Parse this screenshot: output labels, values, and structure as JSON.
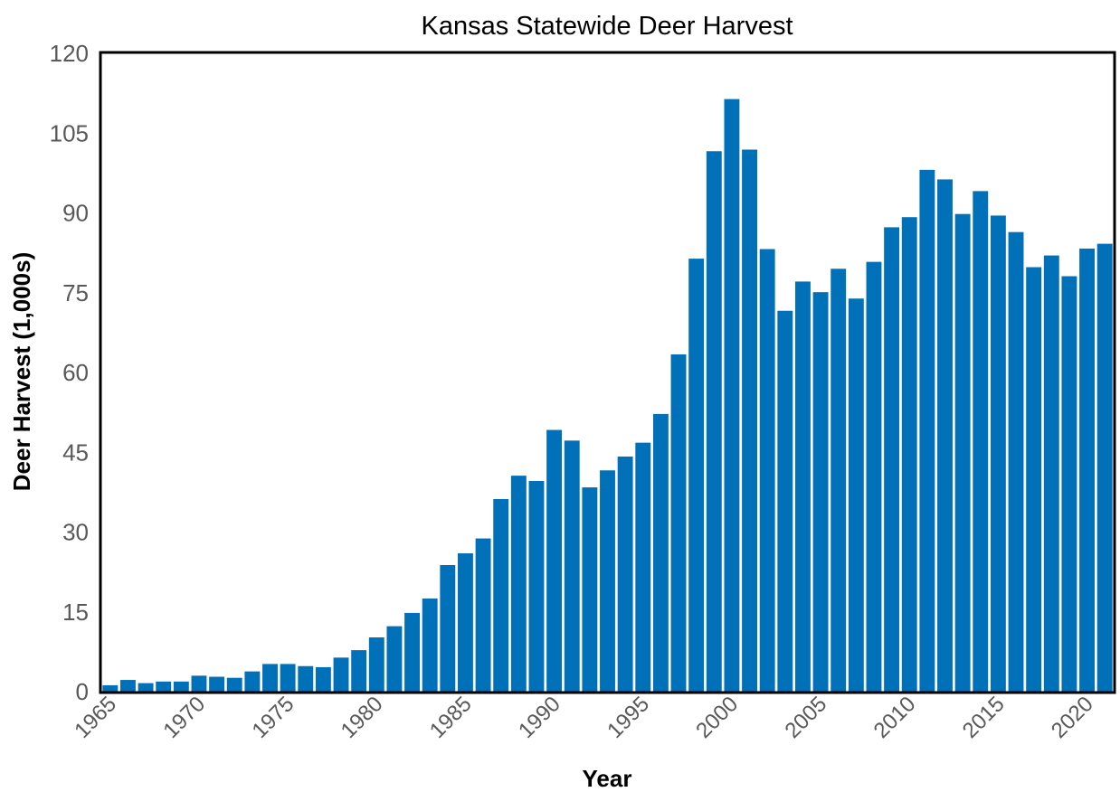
{
  "chart_data": {
    "type": "bar",
    "title": "Kansas Statewide Deer Harvest",
    "xlabel": "Year",
    "ylabel": "Deer Harvest (1,000s)",
    "ylim": [
      0,
      120
    ],
    "yticks": [
      "0",
      "15",
      "30",
      "45",
      "60",
      "75",
      "90",
      "105",
      "120"
    ],
    "xticks": [
      "1965",
      "1970",
      "1975",
      "1980",
      "1985",
      "1990",
      "1995",
      "2000",
      "2005",
      "2010",
      "2015",
      "2020"
    ],
    "grid": false,
    "legend": false,
    "bar_color": "#0070b8",
    "categories": [
      1965,
      1966,
      1967,
      1968,
      1969,
      1970,
      1971,
      1972,
      1973,
      1974,
      1975,
      1976,
      1977,
      1978,
      1979,
      1980,
      1981,
      1982,
      1983,
      1984,
      1985,
      1986,
      1987,
      1988,
      1989,
      1990,
      1991,
      1992,
      1993,
      1994,
      1995,
      1996,
      1997,
      1998,
      1999,
      2000,
      2001,
      2002,
      2003,
      2004,
      2005,
      2006,
      2007,
      2008,
      2009,
      2010,
      2011,
      2012,
      2013,
      2014,
      2015,
      2016,
      2017,
      2018,
      2019,
      2020,
      2021
    ],
    "values": [
      1.2,
      2.2,
      1.6,
      1.9,
      1.9,
      3.0,
      2.8,
      2.6,
      3.8,
      5.2,
      5.2,
      4.8,
      4.6,
      6.4,
      7.8,
      10.2,
      12.3,
      14.8,
      17.5,
      23.8,
      26.0,
      28.8,
      36.2,
      40.6,
      39.6,
      49.2,
      47.2,
      38.4,
      41.6,
      44.2,
      46.8,
      52.2,
      63.4,
      81.4,
      101.6,
      111.4,
      101.9,
      83.2,
      71.6,
      77.1,
      75.1,
      79.5,
      73.9,
      80.8,
      87.3,
      89.2,
      98.1,
      96.3,
      89.8,
      94.1,
      89.5,
      86.4,
      79.8,
      82.0,
      78.1,
      83.3,
      84.2
    ]
  }
}
